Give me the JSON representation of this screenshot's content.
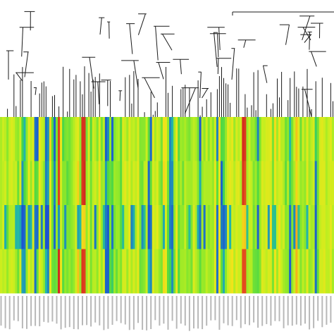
{
  "chart_data": {
    "type": "heatmap",
    "title": "",
    "xlabel": "",
    "ylabel": "",
    "column_count": 156,
    "row_count": 4,
    "rows": [
      "",
      "",
      "",
      ""
    ],
    "columns_label_note": "",
    "color_scale": [
      "#1a3fd9",
      "#22b8a8",
      "#47d647",
      "#8ee82a",
      "#c8ee1f",
      "#f2e41a",
      "#f5a51a",
      "#e2451e",
      "#cc1f1f"
    ],
    "value_range": [
      0,
      1
    ],
    "dendrogram": {
      "side": "top",
      "leaves": 156
    },
    "highlight_columns": {
      "blue": [
        10,
        11,
        16,
        17,
        21,
        22,
        25,
        49,
        50,
        52,
        69,
        70,
        79,
        80,
        93,
        101,
        103,
        104,
        120,
        135,
        147
      ],
      "red_orange": [
        27,
        38,
        39,
        113,
        114
      ]
    }
  },
  "colors": {
    "background": "#ffffff",
    "dendrogram_line": "#1a1a1a",
    "label_text": "#333333"
  }
}
